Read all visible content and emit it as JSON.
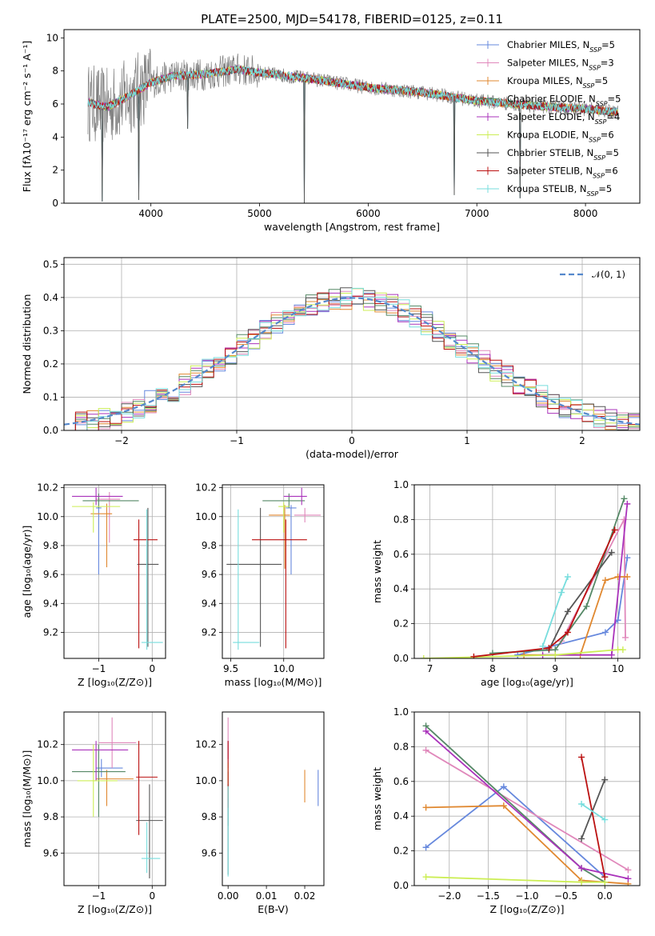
{
  "figure": {
    "title": "PLATE=2500, MJD=54178, FIBERID=0125, z=0.11"
  },
  "models": [
    {
      "name": "Chabrier MILES",
      "nssp": "5",
      "color": "#6688dd"
    },
    {
      "name": "Salpeter MILES",
      "nssp": "3",
      "color": "#e088bb"
    },
    {
      "name": "Kroupa MILES",
      "nssp": "5",
      "color": "#e08830"
    },
    {
      "name": "Chabrier ELODIE",
      "nssp": "5",
      "color": "#558866"
    },
    {
      "name": "Salpeter ELODIE",
      "nssp": "4",
      "color": "#aa33bb"
    },
    {
      "name": "Kroupa ELODIE",
      "nssp": "6",
      "color": "#ccee55"
    },
    {
      "name": "Chabrier STELIB",
      "nssp": "5",
      "color": "#555555"
    },
    {
      "name": "Salpeter STELIB",
      "nssp": "6",
      "color": "#bb1111"
    },
    {
      "name": "Kroupa STELIB",
      "nssp": "5",
      "color": "#77dddd"
    }
  ],
  "legend_nssp_prefix": "N",
  "legend_nssp_sub": "SSP",
  "chart_data": [
    {
      "id": "spectrum",
      "type": "line",
      "xlabel": "wavelength [Angstrom, rest frame]",
      "ylabel": "Flux [fλ10⁻¹⁷ erg cm⁻² s⁻¹ A⁻¹]",
      "xlim": [
        3200,
        8500
      ],
      "ylim": [
        0,
        10.5
      ],
      "xticks": [
        4000,
        5000,
        6000,
        7000,
        8000
      ],
      "yticks": [
        0,
        2,
        4,
        6,
        8,
        10
      ],
      "grid": false,
      "legend": "top-right",
      "continuum": [
        [
          3420,
          6.1
        ],
        [
          3600,
          5.8
        ],
        [
          3800,
          6.5
        ],
        [
          4000,
          7.3
        ],
        [
          4200,
          7.7
        ],
        [
          4500,
          7.8
        ],
        [
          4800,
          8.1
        ],
        [
          5000,
          7.9
        ],
        [
          5500,
          7.5
        ],
        [
          6000,
          7.0
        ],
        [
          6500,
          6.7
        ],
        [
          7000,
          6.2
        ],
        [
          7500,
          5.9
        ],
        [
          8000,
          5.7
        ],
        [
          8300,
          5.5
        ]
      ],
      "absorption_dips": [
        [
          3550,
          0.1
        ],
        [
          3890,
          0.2
        ],
        [
          4340,
          4.5
        ],
        [
          5410,
          0.0
        ],
        [
          6790,
          0.5
        ],
        [
          7400,
          0.3
        ]
      ]
    },
    {
      "id": "residuals",
      "type": "histogram",
      "xlabel": "(data-model)/error",
      "ylabel": "Normed distribution",
      "xlim": [
        -2.5,
        2.5
      ],
      "ylim": [
        0,
        0.52
      ],
      "xticks": [
        -2,
        -1,
        0,
        1,
        2
      ],
      "yticks": [
        0.0,
        0.1,
        0.2,
        0.3,
        0.4,
        0.5
      ],
      "grid": true,
      "legend": "top-right",
      "reference_label": "𝒩(0, 1)",
      "bin_width": 0.1
    },
    {
      "id": "age-vs-z",
      "type": "errorbar",
      "xlabel": "Z [log₁₀(Z/Z⊙)]",
      "ylabel": "age  [log₁₀(age/yr)]",
      "xlim": [
        -1.65,
        0.25
      ],
      "ylim": [
        9.02,
        10.22
      ],
      "xticks": [
        -1,
        0
      ],
      "yticks": [
        9.2,
        9.4,
        9.6,
        9.8,
        10.0,
        10.2
      ],
      "grid": true,
      "points": [
        {
          "x": -1.0,
          "xerr": [
            0.05,
            0.05
          ],
          "y": 10.06,
          "yerr": [
            0.46,
            0.02
          ]
        },
        {
          "x": -0.8,
          "xerr": [
            0.25,
            0.2
          ],
          "y": 10.12,
          "yerr": [
            0.3,
            0.05
          ]
        },
        {
          "x": -0.85,
          "xerr": [
            0.3,
            0.1
          ],
          "y": 10.02,
          "yerr": [
            0.37,
            0.07
          ]
        },
        {
          "x": -1.0,
          "xerr": [
            0.3,
            0.75
          ],
          "y": 10.11,
          "yerr": [
            0.05,
            0.05
          ]
        },
        {
          "x": -1.05,
          "xerr": [
            0.45,
            0.5
          ],
          "y": 10.14,
          "yerr": [
            0.06,
            0.06
          ]
        },
        {
          "x": -1.1,
          "xerr": [
            0.4,
            0.5
          ],
          "y": 10.07,
          "yerr": [
            0.18,
            0.03
          ]
        },
        {
          "x": -0.08,
          "xerr": [
            0.2,
            0.2
          ],
          "y": 9.67,
          "yerr": [
            0.57,
            0.39
          ]
        },
        {
          "x": -0.25,
          "xerr": [
            0.1,
            0.35
          ],
          "y": 9.84,
          "yerr": [
            0.75,
            0.14
          ]
        },
        {
          "x": -0.1,
          "xerr": [
            0.1,
            0.3
          ],
          "y": 9.13,
          "yerr": [
            0.05,
            0.92
          ]
        }
      ]
    },
    {
      "id": "age-vs-mass",
      "type": "errorbar",
      "xlabel": "mass [log₁₀(M/M⊙)]",
      "ylabel": "",
      "xlim": [
        9.42,
        10.38
      ],
      "ylim": [
        9.02,
        10.22
      ],
      "xticks": [
        9.5,
        10.0
      ],
      "yticks": [
        9.2,
        9.4,
        9.6,
        9.8,
        10.0,
        10.2
      ],
      "grid": true,
      "points": [
        {
          "x": 10.07,
          "xerr": [
            0.05,
            0.05
          ],
          "y": 10.06,
          "yerr": [
            0.46,
            0.02
          ]
        },
        {
          "x": 10.2,
          "xerr": [
            0.1,
            0.15
          ],
          "y": 10.01,
          "yerr": [
            0.05,
            0.05
          ]
        },
        {
          "x": 10.01,
          "xerr": [
            0.15,
            0.05
          ],
          "y": 10.01,
          "yerr": [
            0.37,
            0.07
          ]
        },
        {
          "x": 10.05,
          "xerr": [
            0.25,
            0.15
          ],
          "y": 10.11,
          "yerr": [
            0.05,
            0.05
          ]
        },
        {
          "x": 10.17,
          "xerr": [
            0.17,
            0.05
          ],
          "y": 10.14,
          "yerr": [
            0.06,
            0.06
          ]
        },
        {
          "x": 10.0,
          "xerr": [
            0.05,
            0.05
          ],
          "y": 10.07,
          "yerr": [
            0.18,
            0.03
          ]
        },
        {
          "x": 9.78,
          "xerr": [
            0.32,
            0.2
          ],
          "y": 9.67,
          "yerr": [
            0.57,
            0.39
          ]
        },
        {
          "x": 10.02,
          "xerr": [
            0.32,
            0.2
          ],
          "y": 9.84,
          "yerr": [
            0.75,
            0.14
          ]
        },
        {
          "x": 9.57,
          "xerr": [
            0.05,
            0.2
          ],
          "y": 9.13,
          "yerr": [
            0.05,
            0.92
          ]
        }
      ]
    },
    {
      "id": "mass-weight-vs-age",
      "type": "line",
      "xlabel": "age  [log₁₀(age/yr)]",
      "ylabel": "mass weight",
      "xlim": [
        6.75,
        10.35
      ],
      "ylim": [
        0,
        1.0
      ],
      "xticks": [
        7,
        8,
        9,
        10
      ],
      "yticks": [
        0.0,
        0.2,
        0.4,
        0.6,
        0.8,
        1.0
      ],
      "grid": true,
      "series": [
        [
          [
            8.4,
            0.02
          ],
          [
            9.8,
            0.15
          ],
          [
            10.0,
            0.22
          ],
          [
            10.15,
            0.58
          ]
        ],
        [
          [
            9.1,
            0.1
          ],
          [
            10.1,
            0.8
          ],
          [
            10.12,
            0.12
          ]
        ],
        [
          [
            8.5,
            0.02
          ],
          [
            9.4,
            0.02
          ],
          [
            9.8,
            0.45
          ],
          [
            10.0,
            0.47
          ],
          [
            10.15,
            0.47
          ]
        ],
        [
          [
            8.0,
            0.03
          ],
          [
            9.0,
            0.05
          ],
          [
            9.5,
            0.3
          ],
          [
            10.1,
            0.92
          ]
        ],
        [
          [
            8.8,
            0.02
          ],
          [
            9.9,
            0.02
          ],
          [
            10.15,
            0.89
          ]
        ],
        [
          [
            6.9,
            0.0
          ],
          [
            9.0,
            0.02
          ],
          [
            10.0,
            0.05
          ],
          [
            10.08,
            0.05
          ]
        ],
        [
          [
            8.9,
            0.05
          ],
          [
            9.2,
            0.27
          ],
          [
            9.9,
            0.61
          ]
        ],
        [
          [
            7.7,
            0.01
          ],
          [
            8.9,
            0.06
          ],
          [
            9.2,
            0.15
          ],
          [
            9.95,
            0.74
          ]
        ],
        [
          [
            8.8,
            0.07
          ],
          [
            9.1,
            0.38
          ],
          [
            9.2,
            0.47
          ]
        ]
      ]
    },
    {
      "id": "mass-vs-z",
      "type": "errorbar",
      "xlabel": "Z [log₁₀(Z/Z⊙)]",
      "ylabel": "mass [log₁₀(M/M⊙)]",
      "xlim": [
        -1.65,
        0.25
      ],
      "ylim": [
        9.42,
        10.38
      ],
      "xticks": [
        -1,
        0
      ],
      "yticks": [
        9.6,
        9.8,
        10.0,
        10.2
      ],
      "grid": true,
      "points": [
        {
          "x": -0.95,
          "xerr": [
            0.1,
            0.4
          ],
          "y": 10.07,
          "yerr": [
            0.05,
            0.05
          ]
        },
        {
          "x": -0.75,
          "xerr": [
            0.25,
            0.45
          ],
          "y": 10.21,
          "yerr": [
            0.14,
            0.14
          ]
        },
        {
          "x": -0.85,
          "xerr": [
            0.2,
            0.5
          ],
          "y": 10.01,
          "yerr": [
            0.15,
            0.05
          ]
        },
        {
          "x": -1.0,
          "xerr": [
            0.5,
            0.5
          ],
          "y": 10.05,
          "yerr": [
            0.25,
            0.15
          ]
        },
        {
          "x": -1.05,
          "xerr": [
            0.45,
            0.6
          ],
          "y": 10.17,
          "yerr": [
            0.17,
            0.05
          ]
        },
        {
          "x": -1.1,
          "xerr": [
            0.3,
            0.45
          ],
          "y": 10.0,
          "yerr": [
            0.2,
            0.2
          ]
        },
        {
          "x": -0.05,
          "xerr": [
            0.25,
            0.25
          ],
          "y": 9.78,
          "yerr": [
            0.32,
            0.2
          ]
        },
        {
          "x": -0.25,
          "xerr": [
            0.05,
            0.35
          ],
          "y": 10.02,
          "yerr": [
            0.32,
            0.2
          ]
        },
        {
          "x": -0.1,
          "xerr": [
            0.1,
            0.25
          ],
          "y": 9.57,
          "yerr": [
            0.08,
            0.2
          ]
        }
      ]
    },
    {
      "id": "mass-vs-ebv",
      "type": "errorbar",
      "xlabel": "E(B-V)",
      "ylabel": "",
      "xlim": [
        -0.0015,
        0.025
      ],
      "ylim": [
        9.42,
        10.38
      ],
      "xticks": [
        0.0,
        0.01,
        0.02
      ],
      "yticks": [
        9.6,
        9.8,
        10.0,
        10.2
      ],
      "grid": false,
      "points": [
        {
          "x": 0.0235,
          "xerr": [
            0,
            0
          ],
          "y": 9.96,
          "yerr": [
            0.1,
            0.1
          ]
        },
        {
          "x": 0.0,
          "xerr": [
            0,
            0
          ],
          "y": 10.21,
          "yerr": [
            0.14,
            0.14
          ]
        },
        {
          "x": 0.02,
          "xerr": [
            0,
            0
          ],
          "y": 9.97,
          "yerr": [
            0.09,
            0.09
          ]
        },
        {
          "x": 0.0,
          "xerr": [
            0,
            0
          ],
          "y": 9.9,
          "yerr": [
            0.15,
            0.15
          ]
        },
        {
          "x": 0.0,
          "xerr": [
            0,
            0
          ],
          "y": 10.17,
          "yerr": [
            0.05,
            0.05
          ]
        },
        {
          "x": 0.0,
          "xerr": [
            0,
            0
          ],
          "y": 10.0,
          "yerr": [
            0.1,
            0.1
          ]
        },
        {
          "x": 0.0,
          "xerr": [
            0,
            0
          ],
          "y": 9.78,
          "yerr": [
            0.3,
            0.2
          ]
        },
        {
          "x": 0.0,
          "xerr": [
            0,
            0
          ],
          "y": 10.0,
          "yerr": [
            0.15,
            0.22
          ]
        },
        {
          "x": 0.0,
          "xerr": [
            0,
            0
          ],
          "y": 9.72,
          "yerr": [
            0.25,
            0.25
          ]
        }
      ]
    },
    {
      "id": "mass-weight-vs-z",
      "type": "line",
      "xlabel": "Z [log₁₀(Z/Z⊙)]",
      "ylabel": "mass weight",
      "xlim": [
        -2.45,
        0.45
      ],
      "ylim": [
        0,
        1.0
      ],
      "xticks": [
        -2.0,
        -1.5,
        -1.0,
        -0.5,
        0.0
      ],
      "yticks": [
        0.0,
        0.2,
        0.4,
        0.6,
        0.8,
        1.0
      ],
      "grid": true,
      "series": [
        [
          [
            -2.3,
            0.22
          ],
          [
            -1.3,
            0.57
          ],
          [
            0.0,
            0.05
          ]
        ],
        [
          [
            -2.3,
            0.78
          ],
          [
            0.3,
            0.09
          ]
        ],
        [
          [
            -2.3,
            0.45
          ],
          [
            -1.3,
            0.46
          ],
          [
            -0.3,
            0.03
          ],
          [
            0.3,
            0.01
          ]
        ],
        [
          [
            -2.3,
            0.92
          ],
          [
            -0.3,
            0.1
          ],
          [
            0.0,
            0.02
          ]
        ],
        [
          [
            -2.3,
            0.89
          ],
          [
            -0.3,
            0.1
          ],
          [
            0.3,
            0.04
          ]
        ],
        [
          [
            -2.3,
            0.05
          ],
          [
            -0.3,
            0.02
          ],
          [
            0.0,
            0.02
          ]
        ],
        [
          [
            -0.3,
            0.27
          ],
          [
            0.0,
            0.61
          ]
        ],
        [
          [
            -0.3,
            0.74
          ],
          [
            0.0,
            0.05
          ]
        ],
        [
          [
            -0.3,
            0.47
          ],
          [
            0.0,
            0.38
          ]
        ]
      ]
    }
  ]
}
